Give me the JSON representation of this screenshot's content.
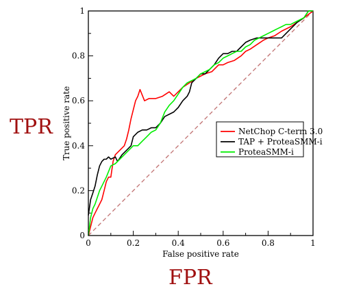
{
  "overlay_labels": {
    "y": "TPR",
    "x": "FPR"
  },
  "chart_data": {
    "type": "line",
    "xlabel": "False positive rate",
    "ylabel": "True positive rate",
    "xlim": [
      0,
      1
    ],
    "ylim": [
      0,
      1
    ],
    "xticks": [
      0,
      0.2,
      0.4,
      0.6,
      0.8,
      1
    ],
    "yticks": [
      0,
      0.2,
      0.4,
      0.6,
      0.8,
      1
    ],
    "xtick_labels": [
      "0",
      "0.2",
      "0.4",
      "0.6",
      "0.8",
      "1"
    ],
    "ytick_labels": [
      "0",
      "0.2",
      "0.4",
      "0.6",
      "0.8",
      "1"
    ],
    "grid": false,
    "legend_position": "right-center",
    "diagonal_reference": {
      "color": "#c07070",
      "dashed": true,
      "points": [
        [
          0,
          0
        ],
        [
          1,
          1
        ]
      ]
    },
    "series": [
      {
        "name": "NetChop C-term 3.0",
        "color": "#ff0000",
        "points": [
          [
            0,
            0
          ],
          [
            0.01,
            0.04
          ],
          [
            0.02,
            0.08
          ],
          [
            0.03,
            0.1
          ],
          [
            0.04,
            0.12
          ],
          [
            0.05,
            0.14
          ],
          [
            0.06,
            0.16
          ],
          [
            0.07,
            0.2
          ],
          [
            0.08,
            0.24
          ],
          [
            0.09,
            0.26
          ],
          [
            0.1,
            0.26
          ],
          [
            0.11,
            0.33
          ],
          [
            0.12,
            0.36
          ],
          [
            0.14,
            0.38
          ],
          [
            0.16,
            0.4
          ],
          [
            0.17,
            0.43
          ],
          [
            0.18,
            0.47
          ],
          [
            0.19,
            0.52
          ],
          [
            0.2,
            0.56
          ],
          [
            0.21,
            0.6
          ],
          [
            0.22,
            0.62
          ],
          [
            0.23,
            0.65
          ],
          [
            0.25,
            0.6
          ],
          [
            0.27,
            0.61
          ],
          [
            0.3,
            0.61
          ],
          [
            0.33,
            0.62
          ],
          [
            0.36,
            0.64
          ],
          [
            0.38,
            0.62
          ],
          [
            0.4,
            0.64
          ],
          [
            0.42,
            0.66
          ],
          [
            0.45,
            0.68
          ],
          [
            0.48,
            0.7
          ],
          [
            0.5,
            0.71
          ],
          [
            0.52,
            0.72
          ],
          [
            0.55,
            0.73
          ],
          [
            0.58,
            0.76
          ],
          [
            0.6,
            0.76
          ],
          [
            0.62,
            0.77
          ],
          [
            0.65,
            0.78
          ],
          [
            0.68,
            0.8
          ],
          [
            0.7,
            0.82
          ],
          [
            0.72,
            0.83
          ],
          [
            0.75,
            0.85
          ],
          [
            0.78,
            0.87
          ],
          [
            0.8,
            0.88
          ],
          [
            0.83,
            0.89
          ],
          [
            0.86,
            0.91
          ],
          [
            0.9,
            0.93
          ],
          [
            0.93,
            0.95
          ],
          [
            0.96,
            0.97
          ],
          [
            1,
            1
          ]
        ]
      },
      {
        "name": "TAP + ProteaSMM-i",
        "color": "#000000",
        "points": [
          [
            0,
            0.09
          ],
          [
            0.01,
            0.16
          ],
          [
            0.02,
            0.19
          ],
          [
            0.03,
            0.22
          ],
          [
            0.04,
            0.27
          ],
          [
            0.05,
            0.31
          ],
          [
            0.06,
            0.33
          ],
          [
            0.07,
            0.34
          ],
          [
            0.08,
            0.34
          ],
          [
            0.09,
            0.35
          ],
          [
            0.1,
            0.34
          ],
          [
            0.12,
            0.35
          ],
          [
            0.13,
            0.33
          ],
          [
            0.15,
            0.36
          ],
          [
            0.17,
            0.38
          ],
          [
            0.19,
            0.4
          ],
          [
            0.2,
            0.44
          ],
          [
            0.22,
            0.46
          ],
          [
            0.24,
            0.47
          ],
          [
            0.26,
            0.47
          ],
          [
            0.28,
            0.48
          ],
          [
            0.3,
            0.48
          ],
          [
            0.32,
            0.5
          ],
          [
            0.34,
            0.53
          ],
          [
            0.36,
            0.54
          ],
          [
            0.38,
            0.55
          ],
          [
            0.4,
            0.57
          ],
          [
            0.42,
            0.6
          ],
          [
            0.44,
            0.62
          ],
          [
            0.45,
            0.64
          ],
          [
            0.46,
            0.68
          ],
          [
            0.48,
            0.7
          ],
          [
            0.5,
            0.72
          ],
          [
            0.52,
            0.72
          ],
          [
            0.54,
            0.74
          ],
          [
            0.56,
            0.76
          ],
          [
            0.58,
            0.79
          ],
          [
            0.6,
            0.81
          ],
          [
            0.62,
            0.81
          ],
          [
            0.64,
            0.82
          ],
          [
            0.66,
            0.82
          ],
          [
            0.68,
            0.84
          ],
          [
            0.7,
            0.86
          ],
          [
            0.72,
            0.87
          ],
          [
            0.75,
            0.88
          ],
          [
            0.78,
            0.88
          ],
          [
            0.82,
            0.88
          ],
          [
            0.86,
            0.88
          ],
          [
            0.9,
            0.92
          ],
          [
            0.93,
            0.95
          ],
          [
            0.96,
            0.97
          ],
          [
            0.98,
            1
          ],
          [
            1,
            1
          ]
        ]
      },
      {
        "name": "ProteaSMM-i",
        "color": "#00ee00",
        "points": [
          [
            0,
            0
          ],
          [
            0.01,
            0.08
          ],
          [
            0.02,
            0.12
          ],
          [
            0.03,
            0.14
          ],
          [
            0.04,
            0.17
          ],
          [
            0.05,
            0.2
          ],
          [
            0.06,
            0.22
          ],
          [
            0.08,
            0.26
          ],
          [
            0.1,
            0.31
          ],
          [
            0.12,
            0.32
          ],
          [
            0.14,
            0.34
          ],
          [
            0.16,
            0.36
          ],
          [
            0.18,
            0.38
          ],
          [
            0.2,
            0.4
          ],
          [
            0.22,
            0.4
          ],
          [
            0.24,
            0.42
          ],
          [
            0.26,
            0.44
          ],
          [
            0.28,
            0.46
          ],
          [
            0.3,
            0.47
          ],
          [
            0.32,
            0.5
          ],
          [
            0.34,
            0.55
          ],
          [
            0.36,
            0.58
          ],
          [
            0.38,
            0.6
          ],
          [
            0.4,
            0.63
          ],
          [
            0.42,
            0.66
          ],
          [
            0.44,
            0.68
          ],
          [
            0.46,
            0.69
          ],
          [
            0.48,
            0.7
          ],
          [
            0.5,
            0.72
          ],
          [
            0.52,
            0.73
          ],
          [
            0.54,
            0.74
          ],
          [
            0.56,
            0.76
          ],
          [
            0.58,
            0.77
          ],
          [
            0.6,
            0.79
          ],
          [
            0.62,
            0.8
          ],
          [
            0.64,
            0.81
          ],
          [
            0.66,
            0.82
          ],
          [
            0.68,
            0.82
          ],
          [
            0.7,
            0.84
          ],
          [
            0.72,
            0.85
          ],
          [
            0.74,
            0.87
          ],
          [
            0.76,
            0.88
          ],
          [
            0.78,
            0.89
          ],
          [
            0.8,
            0.9
          ],
          [
            0.82,
            0.91
          ],
          [
            0.84,
            0.92
          ],
          [
            0.86,
            0.93
          ],
          [
            0.88,
            0.94
          ],
          [
            0.9,
            0.94
          ],
          [
            0.92,
            0.95
          ],
          [
            0.94,
            0.96
          ],
          [
            0.96,
            0.97
          ],
          [
            0.98,
            1
          ],
          [
            1,
            1
          ]
        ]
      }
    ]
  }
}
